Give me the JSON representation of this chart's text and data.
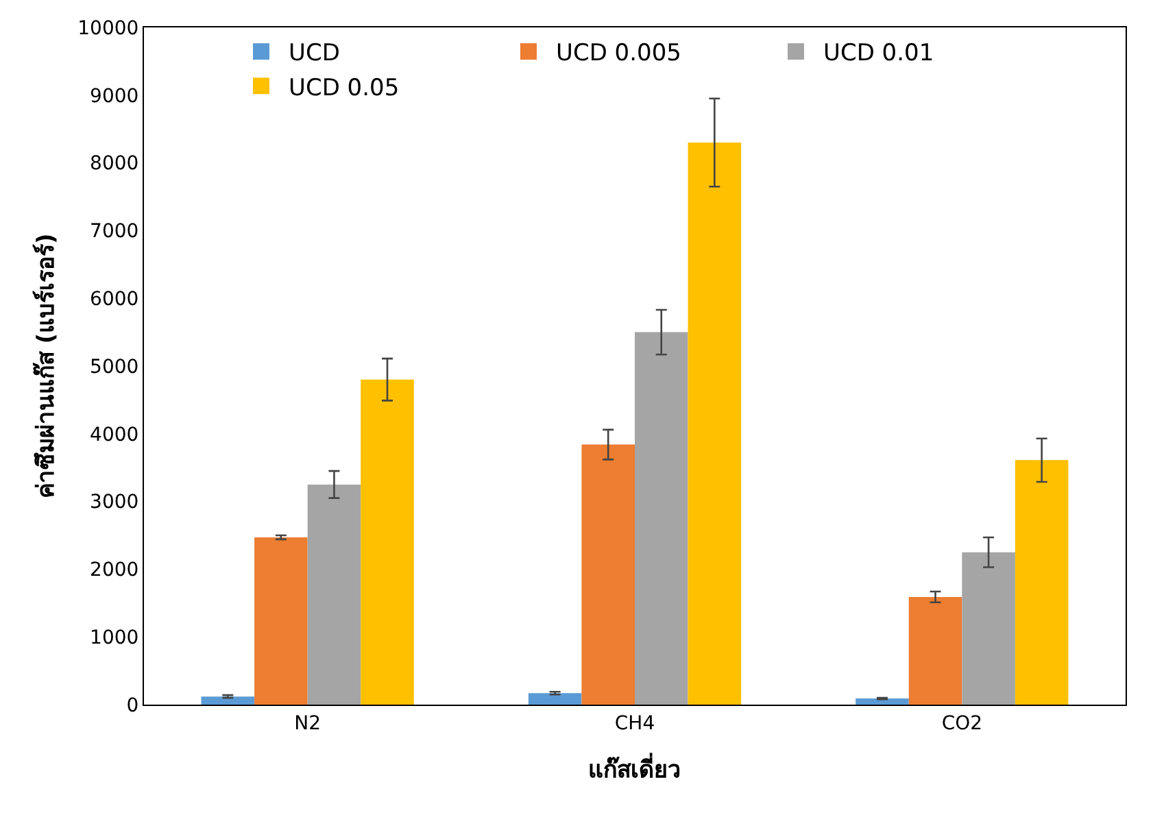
{
  "chart_data": {
    "type": "bar",
    "xlabel": "แก๊สเดี่ยว",
    "ylabel": "ค่าซึมผ่านแก๊ส (แบร์เรอร์)",
    "categories": [
      "N2",
      "CH4",
      "CO2"
    ],
    "series": [
      {
        "name": "UCD",
        "color": "#5b9bd5",
        "values": [
          120,
          170,
          90
        ],
        "errors": [
          20,
          20,
          10
        ]
      },
      {
        "name": "UCD 0.005",
        "color": "#ed7d31",
        "values": [
          2470,
          3840,
          1590
        ],
        "errors": [
          30,
          220,
          80
        ]
      },
      {
        "name": "UCD 0.01",
        "color": "#a5a5a5",
        "values": [
          3250,
          5500,
          2250
        ],
        "errors": [
          200,
          330,
          220
        ]
      },
      {
        "name": "UCD 0.05",
        "color": "#ffc000",
        "values": [
          4800,
          8300,
          3610
        ],
        "errors": [
          310,
          650,
          320
        ]
      }
    ],
    "ylim": [
      0,
      10000
    ],
    "yticks": [
      0,
      1000,
      2000,
      3000,
      4000,
      5000,
      6000,
      7000,
      8000,
      9000,
      10000
    ],
    "grid": false,
    "legend": "top"
  }
}
